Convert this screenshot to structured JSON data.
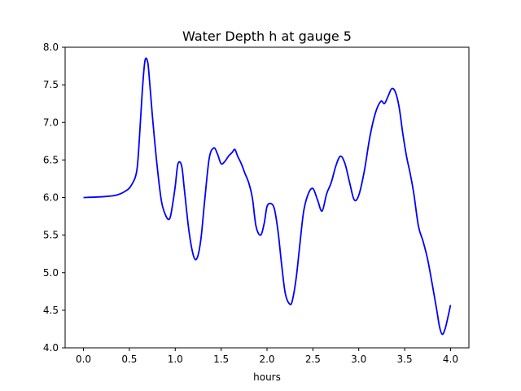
{
  "chart_data": {
    "type": "line",
    "title": "Water Depth h at gauge 5",
    "xlabel": "hours",
    "ylabel": "",
    "xlim": [
      -0.2,
      4.2
    ],
    "ylim": [
      4.0,
      8.0
    ],
    "x_ticks": [
      0.0,
      0.5,
      1.0,
      1.5,
      2.0,
      2.5,
      3.0,
      3.5,
      4.0
    ],
    "x_tick_labels": [
      "0.0",
      "0.5",
      "1.0",
      "1.5",
      "2.0",
      "2.5",
      "3.0",
      "3.5",
      "4.0"
    ],
    "y_ticks": [
      4.0,
      4.5,
      5.0,
      5.5,
      6.0,
      6.5,
      7.0,
      7.5,
      8.0
    ],
    "y_tick_labels": [
      "4.0",
      "4.5",
      "5.0",
      "5.5",
      "6.0",
      "6.5",
      "7.0",
      "7.5",
      "8.0"
    ],
    "grid": false,
    "series": [
      {
        "color": "#0000ff",
        "x": [
          0.0,
          0.2,
          0.35,
          0.45,
          0.52,
          0.58,
          0.61,
          0.64,
          0.67,
          0.7,
          0.72,
          0.75,
          0.8,
          0.85,
          0.9,
          0.94,
          0.97,
          1.0,
          1.03,
          1.07,
          1.1,
          1.15,
          1.2,
          1.24,
          1.28,
          1.32,
          1.37,
          1.42,
          1.46,
          1.5,
          1.54,
          1.58,
          1.62,
          1.65,
          1.68,
          1.72,
          1.76,
          1.8,
          1.84,
          1.88,
          1.93,
          1.97,
          2.0,
          2.04,
          2.08,
          2.12,
          2.16,
          2.2,
          2.25,
          2.28,
          2.32,
          2.36,
          2.4,
          2.45,
          2.5,
          2.55,
          2.6,
          2.65,
          2.7,
          2.75,
          2.8,
          2.85,
          2.9,
          2.95,
          3.0,
          3.06,
          3.12,
          3.18,
          3.24,
          3.28,
          3.32,
          3.36,
          3.4,
          3.44,
          3.48,
          3.52,
          3.56,
          3.6,
          3.65,
          3.7,
          3.75,
          3.8,
          3.85,
          3.88,
          3.91,
          3.94,
          3.97,
          4.0
        ],
        "y": [
          6.0,
          6.01,
          6.03,
          6.08,
          6.16,
          6.35,
          6.8,
          7.4,
          7.82,
          7.8,
          7.55,
          7.1,
          6.45,
          5.95,
          5.75,
          5.72,
          5.9,
          6.15,
          6.45,
          6.42,
          6.1,
          5.55,
          5.22,
          5.2,
          5.45,
          5.95,
          6.52,
          6.66,
          6.58,
          6.45,
          6.48,
          6.55,
          6.6,
          6.64,
          6.55,
          6.45,
          6.32,
          6.2,
          6.0,
          5.62,
          5.5,
          5.66,
          5.88,
          5.92,
          5.85,
          5.55,
          5.1,
          4.72,
          4.58,
          4.65,
          4.95,
          5.4,
          5.82,
          6.05,
          6.12,
          5.97,
          5.82,
          6.05,
          6.2,
          6.42,
          6.55,
          6.45,
          6.2,
          5.97,
          6.03,
          6.35,
          6.8,
          7.12,
          7.28,
          7.25,
          7.35,
          7.45,
          7.4,
          7.2,
          6.85,
          6.55,
          6.32,
          6.05,
          5.62,
          5.42,
          5.18,
          4.85,
          4.5,
          4.28,
          4.18,
          4.25,
          4.4,
          4.57
        ]
      }
    ]
  }
}
